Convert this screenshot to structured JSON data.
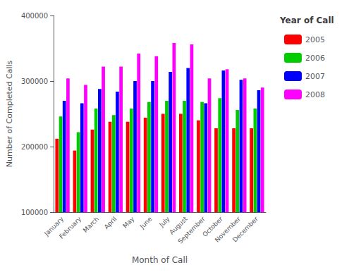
{
  "chart_data": {
    "type": "bar",
    "categories": [
      "January",
      "February",
      "March",
      "April",
      "May",
      "June",
      "July",
      "August",
      "September",
      "October",
      "November",
      "December"
    ],
    "series": [
      {
        "name": "2005",
        "color": "#ff0000",
        "values": [
          212000,
          194000,
          226000,
          238000,
          238000,
          244000,
          250000,
          250000,
          240000,
          228000,
          228000,
          228000
        ]
      },
      {
        "name": "2006",
        "color": "#00cc00",
        "values": [
          246000,
          222000,
          258000,
          248000,
          258000,
          268000,
          270000,
          270000,
          268000,
          274000,
          256000,
          258000
        ]
      },
      {
        "name": "2007",
        "color": "#0000ff",
        "values": [
          270000,
          266000,
          288000,
          284000,
          300000,
          300000,
          314000,
          320000,
          266000,
          316000,
          302000,
          286000
        ]
      },
      {
        "name": "2008",
        "color": "#ff00ff",
        "values": [
          304000,
          294000,
          322000,
          322000,
          342000,
          338000,
          358000,
          356000,
          304000,
          318000,
          304000,
          290000
        ]
      }
    ],
    "ylim": [
      100000,
      400000
    ],
    "yticks": [
      100000,
      200000,
      300000,
      400000
    ],
    "xlabel": "Month of Call",
    "ylabel": "Number of Completed Calls",
    "legend_title": "Year of Call",
    "legend": "right",
    "grid": false
  }
}
